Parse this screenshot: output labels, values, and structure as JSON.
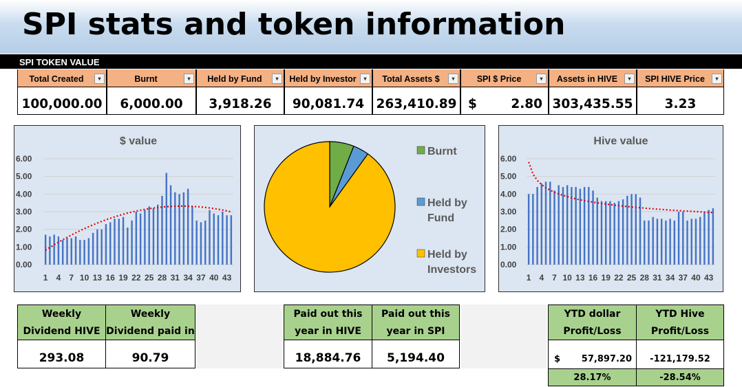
{
  "title": "SPI stats and token information",
  "section_label": "SPI TOKEN VALUE",
  "dropdown_glyph": "▾",
  "token_table": [
    {
      "header": "Total Created",
      "value": "100,000.00"
    },
    {
      "header": "Burnt",
      "value": "6,000.00"
    },
    {
      "header": "Held by Fund",
      "value": "3,918.26"
    },
    {
      "header": "Held by Investor",
      "value": "90,081.74"
    },
    {
      "header": "Total Assets $",
      "value": "263,410.89"
    },
    {
      "header": "SPI $ Price",
      "currency": "$",
      "value": "2.80"
    },
    {
      "header": "Assets in HIVE",
      "value": "303,435.55"
    },
    {
      "header": "SPI HIVE Price",
      "value": "3.23"
    }
  ],
  "colors": {
    "header_orange": "#f4b183",
    "green_cell": "#a9d18e",
    "panel_bg": "#dce6f2",
    "bar": "#4472c4",
    "trend": "#e00000",
    "pie_burnt": "#70ad47",
    "pie_fund": "#5b9bd5",
    "pie_investors": "#ffc000"
  },
  "chart_data": [
    {
      "type": "bar",
      "title": "$ value",
      "trendline": "polynomial, red dotted",
      "ylim": [
        0,
        6
      ],
      "yticks": [
        "0.00",
        "1.00",
        "2.00",
        "3.00",
        "4.00",
        "5.00",
        "6.00"
      ],
      "xtick_labels": [
        "1",
        "4",
        "7",
        "10",
        "13",
        "16",
        "19",
        "22",
        "25",
        "28",
        "31",
        "34",
        "37",
        "40",
        "43"
      ],
      "x": [
        1,
        2,
        3,
        4,
        5,
        6,
        7,
        8,
        9,
        10,
        11,
        12,
        13,
        14,
        15,
        16,
        17,
        18,
        19,
        20,
        21,
        22,
        23,
        24,
        25,
        26,
        27,
        28,
        29,
        30,
        31,
        32,
        33,
        34,
        35,
        36,
        37,
        38,
        39,
        40,
        41,
        42,
        43,
        44
      ],
      "values": [
        1.7,
        1.6,
        1.7,
        1.6,
        1.4,
        1.5,
        1.5,
        1.6,
        1.4,
        1.4,
        1.5,
        1.8,
        2.0,
        2.0,
        2.3,
        2.4,
        2.6,
        2.6,
        2.7,
        2.1,
        2.5,
        3.0,
        2.9,
        3.1,
        3.3,
        3.2,
        3.4,
        3.9,
        5.2,
        4.5,
        4.1,
        4.0,
        4.1,
        4.3,
        3.3,
        2.5,
        2.4,
        2.5,
        3.1,
        2.9,
        2.8,
        3.0,
        2.8,
        2.8
      ],
      "grid": true
    },
    {
      "type": "pie",
      "legend_position": "right",
      "labels": [
        "Burnt",
        "Held by Fund",
        "Held by Investors"
      ],
      "values": [
        6000.0,
        3918.26,
        90081.74
      ]
    },
    {
      "type": "bar",
      "title": "Hive value",
      "trendline": "power, red dotted",
      "ylim": [
        0,
        6
      ],
      "yticks": [
        "0.00",
        "1.00",
        "2.00",
        "3.00",
        "4.00",
        "5.00",
        "6.00"
      ],
      "xtick_labels": [
        "1",
        "4",
        "7",
        "10",
        "13",
        "16",
        "19",
        "22",
        "25",
        "28",
        "31",
        "34",
        "37",
        "40",
        "43"
      ],
      "x": [
        1,
        2,
        3,
        4,
        5,
        6,
        7,
        8,
        9,
        10,
        11,
        12,
        13,
        14,
        15,
        16,
        17,
        18,
        19,
        20,
        21,
        22,
        23,
        24,
        25,
        26,
        27,
        28,
        29,
        30,
        31,
        32,
        33,
        34,
        35,
        36,
        37,
        38,
        39,
        40,
        41,
        42,
        43,
        44
      ],
      "values": [
        4.0,
        4.0,
        4.4,
        4.6,
        4.7,
        4.7,
        4.2,
        4.5,
        4.4,
        4.5,
        4.4,
        4.4,
        4.3,
        4.4,
        4.4,
        4.2,
        3.8,
        3.6,
        3.6,
        3.6,
        3.5,
        3.6,
        3.7,
        3.9,
        4.0,
        4.0,
        3.8,
        2.5,
        2.5,
        2.7,
        2.6,
        2.6,
        2.5,
        2.6,
        2.5,
        3.0,
        3.0,
        2.5,
        2.6,
        2.6,
        2.7,
        3.0,
        3.1,
        3.2
      ],
      "grid": true
    }
  ],
  "bottom": {
    "weekly": [
      {
        "header": "Weekly Dividend HIVE value",
        "value": "293.08"
      },
      {
        "header": "Weekly Dividend paid in SPI",
        "value": "90.79"
      }
    ],
    "paid": [
      {
        "header": "Paid out this year in HIVE value",
        "value": "18,884.76"
      },
      {
        "header": "Paid out this year in SPI",
        "value": "5,194.40"
      }
    ],
    "ytd": [
      {
        "header": "YTD dollar Profit/Loss",
        "currency": "$",
        "value": "57,897.20",
        "percent": "28.17%"
      },
      {
        "header": "YTD Hive Profit/Loss",
        "value": "-121,179.52",
        "percent": "-28.54%"
      }
    ]
  }
}
